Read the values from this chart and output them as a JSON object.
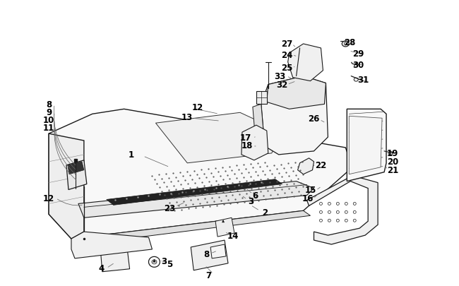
{
  "background_color": "#ffffff",
  "line_color": "#1a1a1a",
  "label_fontsize": 7.5,
  "bold_fontsize": 8.5
}
